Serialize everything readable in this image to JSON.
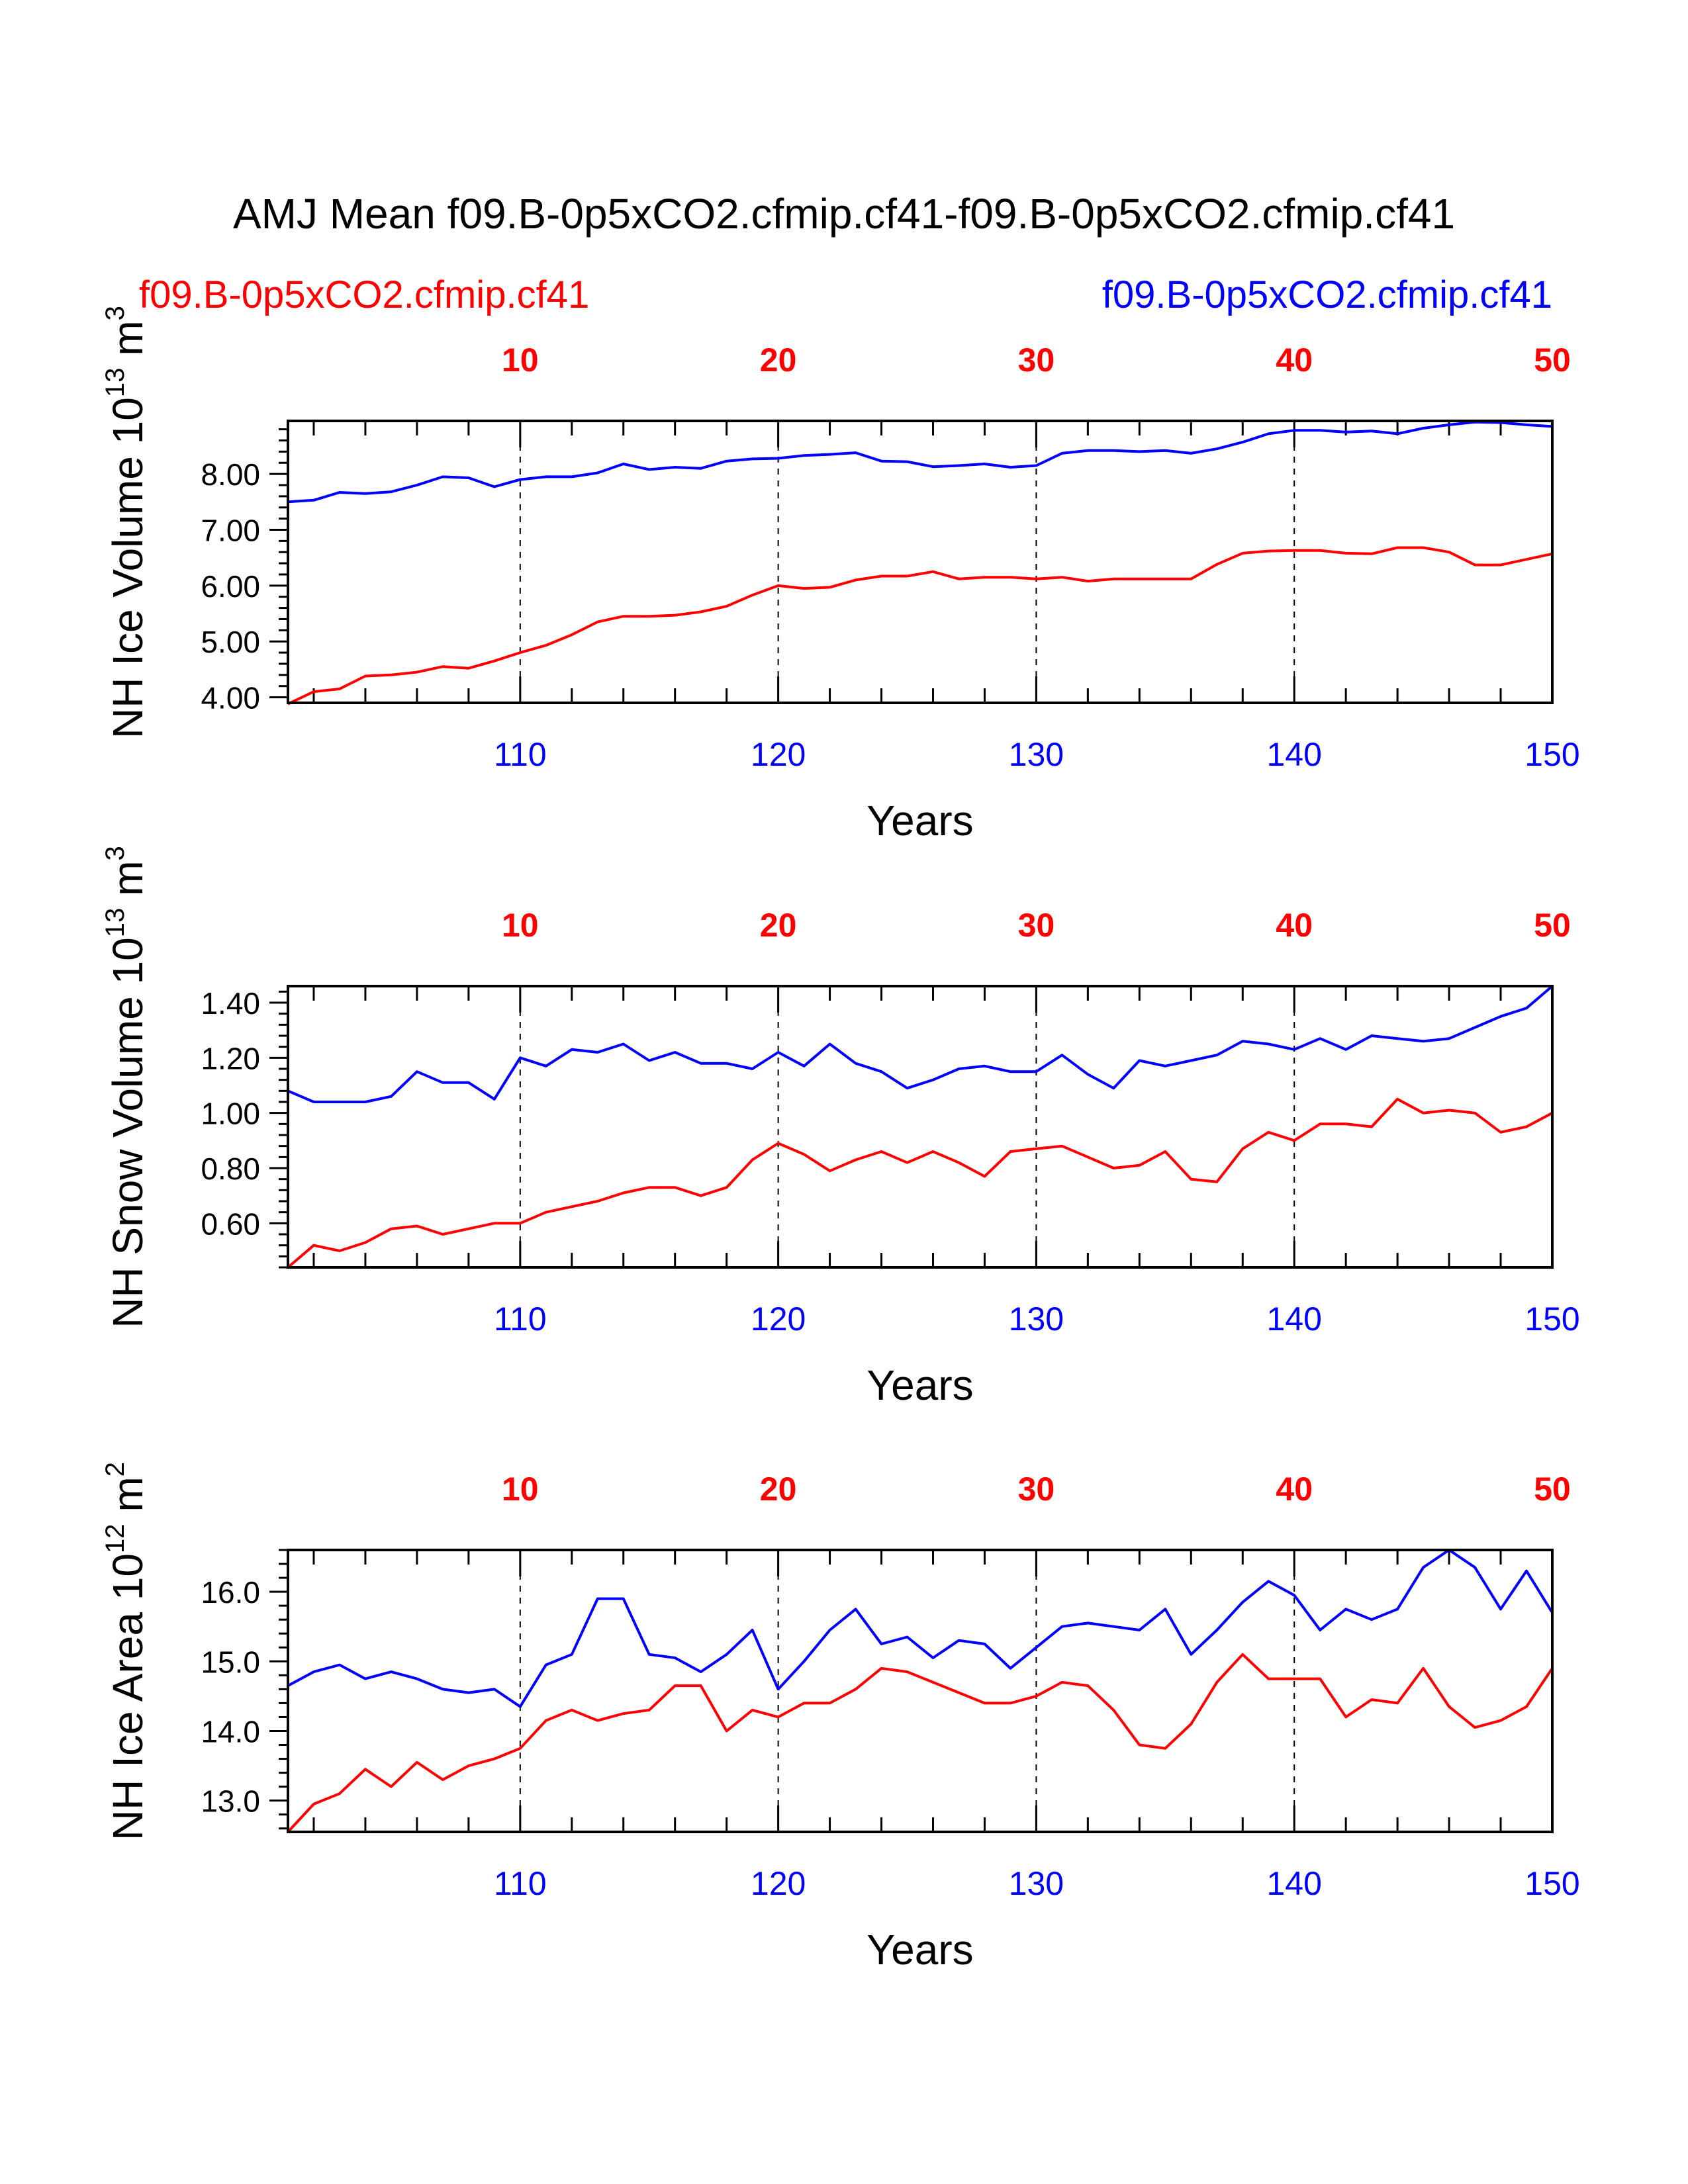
{
  "title": "AMJ Mean f09.B-0p5xCO2.cfmip.cf41-f09.B-0p5xCO2.cfmip.cf41",
  "legend": {
    "left_label": "f09.B-0p5xCO2.cfmip.cf41",
    "right_label": "f09.B-0p5xCO2.cfmip.cf41"
  },
  "colors": {
    "series_a": "#ff0000",
    "series_b": "#0000ff",
    "axis": "#000000"
  },
  "chart_data": [
    {
      "type": "line",
      "ylabel": "NH Ice Volume 10^13 m^3",
      "ylabel_main": "NH Ice Volume 10",
      "ylabel_exp": "13",
      "ylabel_unit": "m",
      "ylabel_unit_exp": "3",
      "xlabel": "Years",
      "ylim": [
        3.9,
        8.95
      ],
      "yticks": [
        4.0,
        5.0,
        6.0,
        7.0,
        8.0
      ],
      "ytick_labels": [
        "4.00",
        "5.00",
        "6.00",
        "7.00",
        "8.00"
      ],
      "xlim": [
        101,
        150
      ],
      "xticks_bottom": [
        110,
        120,
        130,
        140,
        150
      ],
      "xticks_top": [
        10,
        20,
        30,
        40,
        50
      ],
      "grid": "vertical dashed at 110, 120, 130, 140",
      "x": [
        101,
        102,
        103,
        104,
        105,
        106,
        107,
        108,
        109,
        110,
        111,
        112,
        113,
        114,
        115,
        116,
        117,
        118,
        119,
        120,
        121,
        122,
        123,
        124,
        125,
        126,
        127,
        128,
        129,
        130,
        131,
        132,
        133,
        134,
        135,
        136,
        137,
        138,
        139,
        140,
        141,
        142,
        143,
        144,
        145,
        146,
        147,
        148,
        149,
        150
      ],
      "series": [
        {
          "color": "#ff0000",
          "values": [
            3.88,
            4.1,
            4.15,
            4.38,
            4.4,
            4.45,
            4.55,
            4.52,
            4.65,
            4.8,
            4.93,
            5.12,
            5.35,
            5.45,
            5.45,
            5.47,
            5.53,
            5.63,
            5.83,
            6.0,
            5.95,
            5.97,
            6.1,
            6.17,
            6.17,
            6.25,
            6.12,
            6.15,
            6.15,
            6.12,
            6.15,
            6.08,
            6.12,
            6.12,
            6.12,
            6.12,
            6.38,
            6.58,
            6.62,
            6.63,
            6.63,
            6.58,
            6.57,
            6.68,
            6.68,
            6.6,
            6.37,
            6.37,
            6.47,
            6.57
          ]
        },
        {
          "color": "#0000ff",
          "values": [
            7.5,
            7.53,
            7.67,
            7.65,
            7.68,
            7.8,
            7.95,
            7.93,
            7.77,
            7.9,
            7.95,
            7.95,
            8.02,
            8.18,
            8.08,
            8.12,
            8.1,
            8.23,
            8.27,
            8.28,
            8.33,
            8.35,
            8.38,
            8.23,
            8.22,
            8.13,
            8.15,
            8.18,
            8.12,
            8.15,
            8.37,
            8.42,
            8.42,
            8.4,
            8.42,
            8.37,
            8.45,
            8.57,
            8.72,
            8.78,
            8.78,
            8.75,
            8.77,
            8.72,
            8.82,
            8.88,
            8.93,
            8.92,
            8.88,
            8.85
          ]
        }
      ]
    },
    {
      "type": "line",
      "ylabel": "NH Snow Volume 10^13 m^3",
      "ylabel_main": "NH Snow Volume 10",
      "ylabel_exp": "13",
      "ylabel_unit": "m",
      "ylabel_unit_exp": "3",
      "xlabel": "Years",
      "ylim": [
        0.44,
        1.46
      ],
      "yticks": [
        0.6,
        0.8,
        1.0,
        1.2,
        1.4
      ],
      "ytick_labels": [
        "0.60",
        "0.80",
        "1.00",
        "1.20",
        "1.40"
      ],
      "xlim": [
        101,
        150
      ],
      "xticks_bottom": [
        110,
        120,
        130,
        140,
        150
      ],
      "xticks_top": [
        10,
        20,
        30,
        40,
        50
      ],
      "grid": "vertical dashed at 110, 120, 130, 140",
      "x": [
        101,
        102,
        103,
        104,
        105,
        106,
        107,
        108,
        109,
        110,
        111,
        112,
        113,
        114,
        115,
        116,
        117,
        118,
        119,
        120,
        121,
        122,
        123,
        124,
        125,
        126,
        127,
        128,
        129,
        130,
        131,
        132,
        133,
        134,
        135,
        136,
        137,
        138,
        139,
        140,
        141,
        142,
        143,
        144,
        145,
        146,
        147,
        148,
        149,
        150
      ],
      "series": [
        {
          "color": "#ff0000",
          "values": [
            0.44,
            0.52,
            0.5,
            0.53,
            0.58,
            0.59,
            0.56,
            0.58,
            0.6,
            0.6,
            0.64,
            0.66,
            0.68,
            0.71,
            0.73,
            0.73,
            0.7,
            0.73,
            0.83,
            0.89,
            0.85,
            0.79,
            0.83,
            0.86,
            0.82,
            0.86,
            0.82,
            0.77,
            0.86,
            0.87,
            0.88,
            0.84,
            0.8,
            0.81,
            0.86,
            0.76,
            0.75,
            0.87,
            0.93,
            0.9,
            0.96,
            0.96,
            0.95,
            1.05,
            1.0,
            1.01,
            1.0,
            0.93,
            0.95,
            1.0
          ]
        },
        {
          "color": "#0000ff",
          "values": [
            1.08,
            1.04,
            1.04,
            1.04,
            1.06,
            1.15,
            1.11,
            1.11,
            1.05,
            1.2,
            1.17,
            1.23,
            1.22,
            1.25,
            1.19,
            1.22,
            1.18,
            1.18,
            1.16,
            1.22,
            1.17,
            1.25,
            1.18,
            1.15,
            1.09,
            1.12,
            1.16,
            1.17,
            1.15,
            1.15,
            1.21,
            1.14,
            1.09,
            1.19,
            1.17,
            1.19,
            1.21,
            1.26,
            1.25,
            1.23,
            1.27,
            1.23,
            1.28,
            1.27,
            1.26,
            1.27,
            1.31,
            1.35,
            1.38,
            1.46
          ]
        }
      ]
    },
    {
      "type": "line",
      "ylabel": "NH Ice Area 10^12 m^2",
      "ylabel_main": "NH Ice Area 10",
      "ylabel_exp": "12",
      "ylabel_unit": "m",
      "ylabel_unit_exp": "2",
      "xlabel": "Years",
      "ylim": [
        12.55,
        16.6
      ],
      "yticks": [
        13.0,
        14.0,
        15.0,
        16.0
      ],
      "ytick_labels": [
        "13.0",
        "14.0",
        "15.0",
        "16.0"
      ],
      "xlim": [
        101,
        150
      ],
      "xticks_bottom": [
        110,
        120,
        130,
        140,
        150
      ],
      "xticks_top": [
        10,
        20,
        30,
        40,
        50
      ],
      "grid": "vertical dashed at 110, 120, 130, 140",
      "x": [
        101,
        102,
        103,
        104,
        105,
        106,
        107,
        108,
        109,
        110,
        111,
        112,
        113,
        114,
        115,
        116,
        117,
        118,
        119,
        120,
        121,
        122,
        123,
        124,
        125,
        126,
        127,
        128,
        129,
        130,
        131,
        132,
        133,
        134,
        135,
        136,
        137,
        138,
        139,
        140,
        141,
        142,
        143,
        144,
        145,
        146,
        147,
        148,
        149,
        150
      ],
      "series": [
        {
          "color": "#ff0000",
          "values": [
            12.55,
            12.95,
            13.1,
            13.45,
            13.2,
            13.55,
            13.3,
            13.5,
            13.6,
            13.75,
            14.15,
            14.3,
            14.15,
            14.25,
            14.3,
            14.65,
            14.65,
            14.0,
            14.3,
            14.2,
            14.4,
            14.4,
            14.6,
            14.9,
            14.85,
            14.7,
            14.55,
            14.4,
            14.4,
            14.5,
            14.7,
            14.65,
            14.3,
            13.8,
            13.75,
            14.1,
            14.7,
            15.1,
            14.75,
            14.75,
            14.75,
            14.2,
            14.45,
            14.4,
            14.9,
            14.35,
            14.05,
            14.15,
            14.35,
            14.9
          ]
        },
        {
          "color": "#0000ff",
          "values": [
            14.65,
            14.85,
            14.95,
            14.75,
            14.85,
            14.75,
            14.6,
            14.55,
            14.6,
            14.35,
            14.95,
            15.1,
            15.9,
            15.9,
            15.1,
            15.05,
            14.85,
            15.1,
            15.45,
            14.6,
            15.0,
            15.45,
            15.75,
            15.25,
            15.35,
            15.05,
            15.3,
            15.25,
            14.9,
            15.2,
            15.5,
            15.55,
            15.5,
            15.45,
            15.75,
            15.1,
            15.45,
            15.85,
            16.15,
            15.95,
            15.45,
            15.75,
            15.6,
            15.75,
            16.35,
            16.6,
            16.35,
            15.75,
            16.3,
            15.7
          ]
        }
      ]
    }
  ]
}
